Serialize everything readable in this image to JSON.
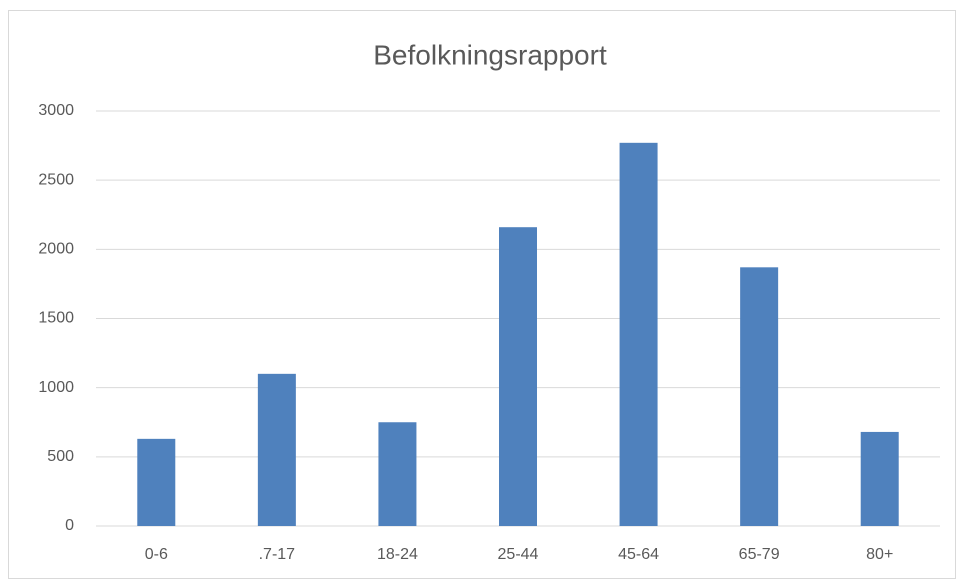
{
  "chart_data": {
    "type": "bar",
    "title": "Befolkningsrapport",
    "categories": [
      "0-6",
      ".7-17",
      "18-24",
      "25-44",
      "45-64",
      "65-79",
      "80+"
    ],
    "values": [
      630,
      1100,
      750,
      2160,
      2770,
      1870,
      680
    ],
    "color": "#4f81bd",
    "ylim": [
      0,
      3000
    ],
    "yticks": [
      0,
      500,
      1000,
      1500,
      2000,
      2500,
      3000
    ],
    "grid": true
  }
}
